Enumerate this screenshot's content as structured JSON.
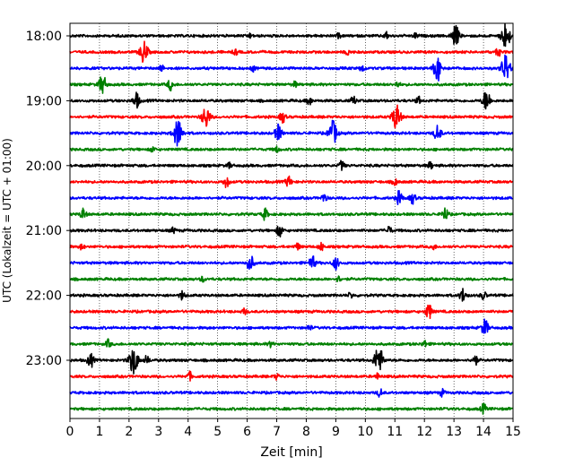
{
  "chart_data": {
    "type": "line",
    "title": "",
    "xlabel": "Zeit  [min]",
    "ylabel": "UTC (Lokalzeit = UTC + 01:00)",
    "xlim": [
      0,
      15
    ],
    "x_ticks": [
      "0",
      "1",
      "2",
      "3",
      "4",
      "5",
      "6",
      "7",
      "8",
      "9",
      "10",
      "11",
      "12",
      "13",
      "14",
      "15"
    ],
    "y_tick_labels": [
      "18:00",
      "19:00",
      "20:00",
      "21:00",
      "22:00",
      "23:00"
    ],
    "grid": "vertical dotted at each minute",
    "colors": [
      "#000000",
      "#ff0000",
      "#0000ff",
      "#008000"
    ],
    "traces": [
      {
        "time": "18:00",
        "color": "#000000",
        "events": [
          [
            6.1,
            0.15
          ],
          [
            9.1,
            0.15
          ],
          [
            10.7,
            0.25
          ],
          [
            11.7,
            0.2
          ],
          [
            13.05,
            0.75
          ],
          [
            14.75,
            1.0
          ]
        ]
      },
      {
        "time": "18:15",
        "color": "#ff0000",
        "events": [
          [
            2.5,
            0.8
          ],
          [
            5.6,
            0.2
          ],
          [
            9.4,
            0.2
          ],
          [
            14.5,
            0.3
          ]
        ]
      },
      {
        "time": "18:30",
        "color": "#0000ff",
        "events": [
          [
            3.1,
            0.2
          ],
          [
            6.2,
            0.2
          ],
          [
            9.9,
            0.25
          ],
          [
            12.45,
            0.9
          ],
          [
            14.75,
            1.0
          ]
        ]
      },
      {
        "time": "18:45",
        "color": "#008000",
        "events": [
          [
            1.1,
            0.7
          ],
          [
            3.4,
            0.4
          ],
          [
            7.6,
            0.2
          ],
          [
            11.1,
            0.2
          ]
        ]
      },
      {
        "time": "19:00",
        "color": "#000000",
        "events": [
          [
            2.25,
            0.55
          ],
          [
            8.1,
            0.3
          ],
          [
            9.6,
            0.3
          ],
          [
            11.8,
            0.25
          ],
          [
            14.1,
            0.75
          ]
        ]
      },
      {
        "time": "19:15",
        "color": "#ff0000",
        "events": [
          [
            4.6,
            0.8
          ],
          [
            7.2,
            0.4
          ],
          [
            11.05,
            0.9
          ]
        ]
      },
      {
        "time": "19:30",
        "color": "#0000ff",
        "events": [
          [
            3.65,
            1.0
          ],
          [
            7.05,
            0.6
          ],
          [
            8.9,
            0.9
          ],
          [
            12.45,
            0.6
          ]
        ]
      },
      {
        "time": "19:45",
        "color": "#008000",
        "events": [
          [
            2.8,
            0.2
          ],
          [
            7.0,
            0.2
          ]
        ]
      },
      {
        "time": "20:00",
        "color": "#000000",
        "events": [
          [
            5.4,
            0.2
          ],
          [
            9.2,
            0.35
          ],
          [
            12.2,
            0.25
          ]
        ]
      },
      {
        "time": "20:15",
        "color": "#ff0000",
        "events": [
          [
            5.3,
            0.4
          ],
          [
            7.4,
            0.4
          ],
          [
            11.0,
            0.25
          ]
        ]
      },
      {
        "time": "20:30",
        "color": "#0000ff",
        "events": [
          [
            8.6,
            0.3
          ],
          [
            11.15,
            0.5
          ],
          [
            11.6,
            0.4
          ]
        ]
      },
      {
        "time": "20:45",
        "color": "#008000",
        "events": [
          [
            0.45,
            0.4
          ],
          [
            6.6,
            0.4
          ],
          [
            12.7,
            0.45
          ]
        ]
      },
      {
        "time": "21:00",
        "color": "#000000",
        "events": [
          [
            3.5,
            0.2
          ],
          [
            7.1,
            0.45
          ],
          [
            10.8,
            0.3
          ]
        ]
      },
      {
        "time": "21:15",
        "color": "#ff0000",
        "events": [
          [
            0.4,
            0.2
          ],
          [
            7.7,
            0.25
          ],
          [
            8.5,
            0.3
          ],
          [
            12.3,
            0.2
          ]
        ]
      },
      {
        "time": "21:30",
        "color": "#0000ff",
        "events": [
          [
            6.1,
            0.6
          ],
          [
            8.2,
            0.5
          ],
          [
            9.0,
            0.45
          ]
        ]
      },
      {
        "time": "21:45",
        "color": "#008000",
        "events": [
          [
            4.5,
            0.2
          ],
          [
            9.1,
            0.2
          ]
        ]
      },
      {
        "time": "22:00",
        "color": "#000000",
        "events": [
          [
            3.8,
            0.3
          ],
          [
            9.5,
            0.2
          ],
          [
            13.3,
            0.5
          ],
          [
            14.0,
            0.3
          ]
        ]
      },
      {
        "time": "22:15",
        "color": "#ff0000",
        "events": [
          [
            5.9,
            0.2
          ],
          [
            12.15,
            0.55
          ]
        ]
      },
      {
        "time": "22:30",
        "color": "#0000ff",
        "events": [
          [
            8.1,
            0.2
          ],
          [
            14.05,
            0.6
          ]
        ]
      },
      {
        "time": "22:45",
        "color": "#008000",
        "events": [
          [
            1.3,
            0.3
          ],
          [
            6.8,
            0.2
          ],
          [
            12.0,
            0.25
          ]
        ]
      },
      {
        "time": "23:00",
        "color": "#000000",
        "events": [
          [
            0.7,
            0.5
          ],
          [
            2.15,
            1.0
          ],
          [
            2.6,
            0.3
          ],
          [
            10.45,
            1.0
          ],
          [
            13.7,
            0.4
          ]
        ]
      },
      {
        "time": "23:15",
        "color": "#ff0000",
        "events": [
          [
            4.05,
            0.3
          ],
          [
            7.0,
            0.2
          ],
          [
            10.4,
            0.2
          ]
        ]
      },
      {
        "time": "23:30",
        "color": "#0000ff",
        "events": [
          [
            10.5,
            0.3
          ],
          [
            12.6,
            0.25
          ]
        ]
      },
      {
        "time": "23:45",
        "color": "#008000",
        "events": [
          [
            14.0,
            0.35
          ]
        ]
      }
    ]
  }
}
